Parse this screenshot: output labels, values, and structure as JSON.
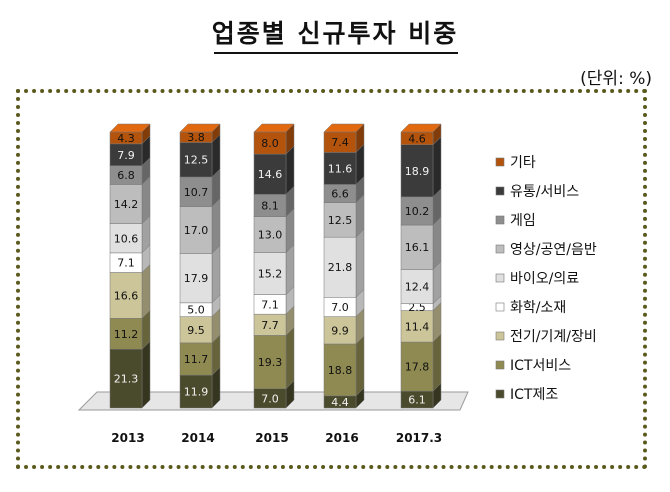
{
  "title": "업종별 신규투자 비중",
  "unit_label": "(단위: %)",
  "colors": {
    "frame_border": "#5b5a1e"
  },
  "chart_data": {
    "type": "bar",
    "stacked": true,
    "title": "업종별 신규투자 비중",
    "xlabel": "",
    "ylabel": "",
    "ylim": [
      0,
      100
    ],
    "legend_position": "right",
    "categories": [
      "2013",
      "2014",
      "2015",
      "2016",
      "2017.3"
    ],
    "series": [
      {
        "name": "ICT제조",
        "color": "#4a4a2c",
        "label_color": "#f2f2f2",
        "values": [
          21.3,
          11.9,
          7.0,
          4.4,
          6.1
        ]
      },
      {
        "name": "ICT서비스",
        "color": "#8f8a52",
        "label_color": "#111111",
        "values": [
          11.2,
          11.7,
          19.3,
          18.8,
          17.8
        ]
      },
      {
        "name": "전기/기계/장비",
        "color": "#cdc59a",
        "label_color": "#111111",
        "values": [
          16.6,
          9.5,
          7.7,
          9.9,
          11.4
        ]
      },
      {
        "name": "화학/소재",
        "color": "#ffffff",
        "label_color": "#111111",
        "values": [
          7.1,
          5.0,
          7.1,
          7.0,
          2.5
        ]
      },
      {
        "name": "바이오/의료",
        "color": "#e0e0e0",
        "label_color": "#111111",
        "values": [
          10.6,
          17.9,
          15.2,
          21.8,
          12.4
        ]
      },
      {
        "name": "영상/공연/음반",
        "color": "#bdbdbd",
        "label_color": "#111111",
        "values": [
          14.2,
          17.0,
          13.0,
          12.5,
          16.1
        ]
      },
      {
        "name": "게임",
        "color": "#8e8e8e",
        "label_color": "#111111",
        "values": [
          6.8,
          10.7,
          8.1,
          6.6,
          10.2
        ]
      },
      {
        "name": "유통/서비스",
        "color": "#3b3b3b",
        "label_color": "#f2f2f2",
        "values": [
          7.9,
          12.5,
          14.6,
          11.6,
          18.9
        ]
      },
      {
        "name": "기타",
        "color": "#b4540c",
        "label_color": "#111111",
        "values": [
          4.3,
          3.8,
          8.0,
          7.4,
          4.6
        ]
      }
    ]
  }
}
